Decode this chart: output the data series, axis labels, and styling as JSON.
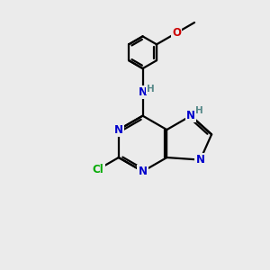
{
  "bg_color": "#ebebeb",
  "bond_color": "#000000",
  "n_color": "#0000cc",
  "o_color": "#cc0000",
  "cl_color": "#00aa00",
  "h_color": "#558888",
  "line_width": 1.6,
  "font_size": 8.5,
  "fig_size": [
    3.0,
    3.0
  ],
  "dpi": 100,
  "xlim": [
    0,
    10
  ],
  "ylim": [
    0,
    10
  ]
}
